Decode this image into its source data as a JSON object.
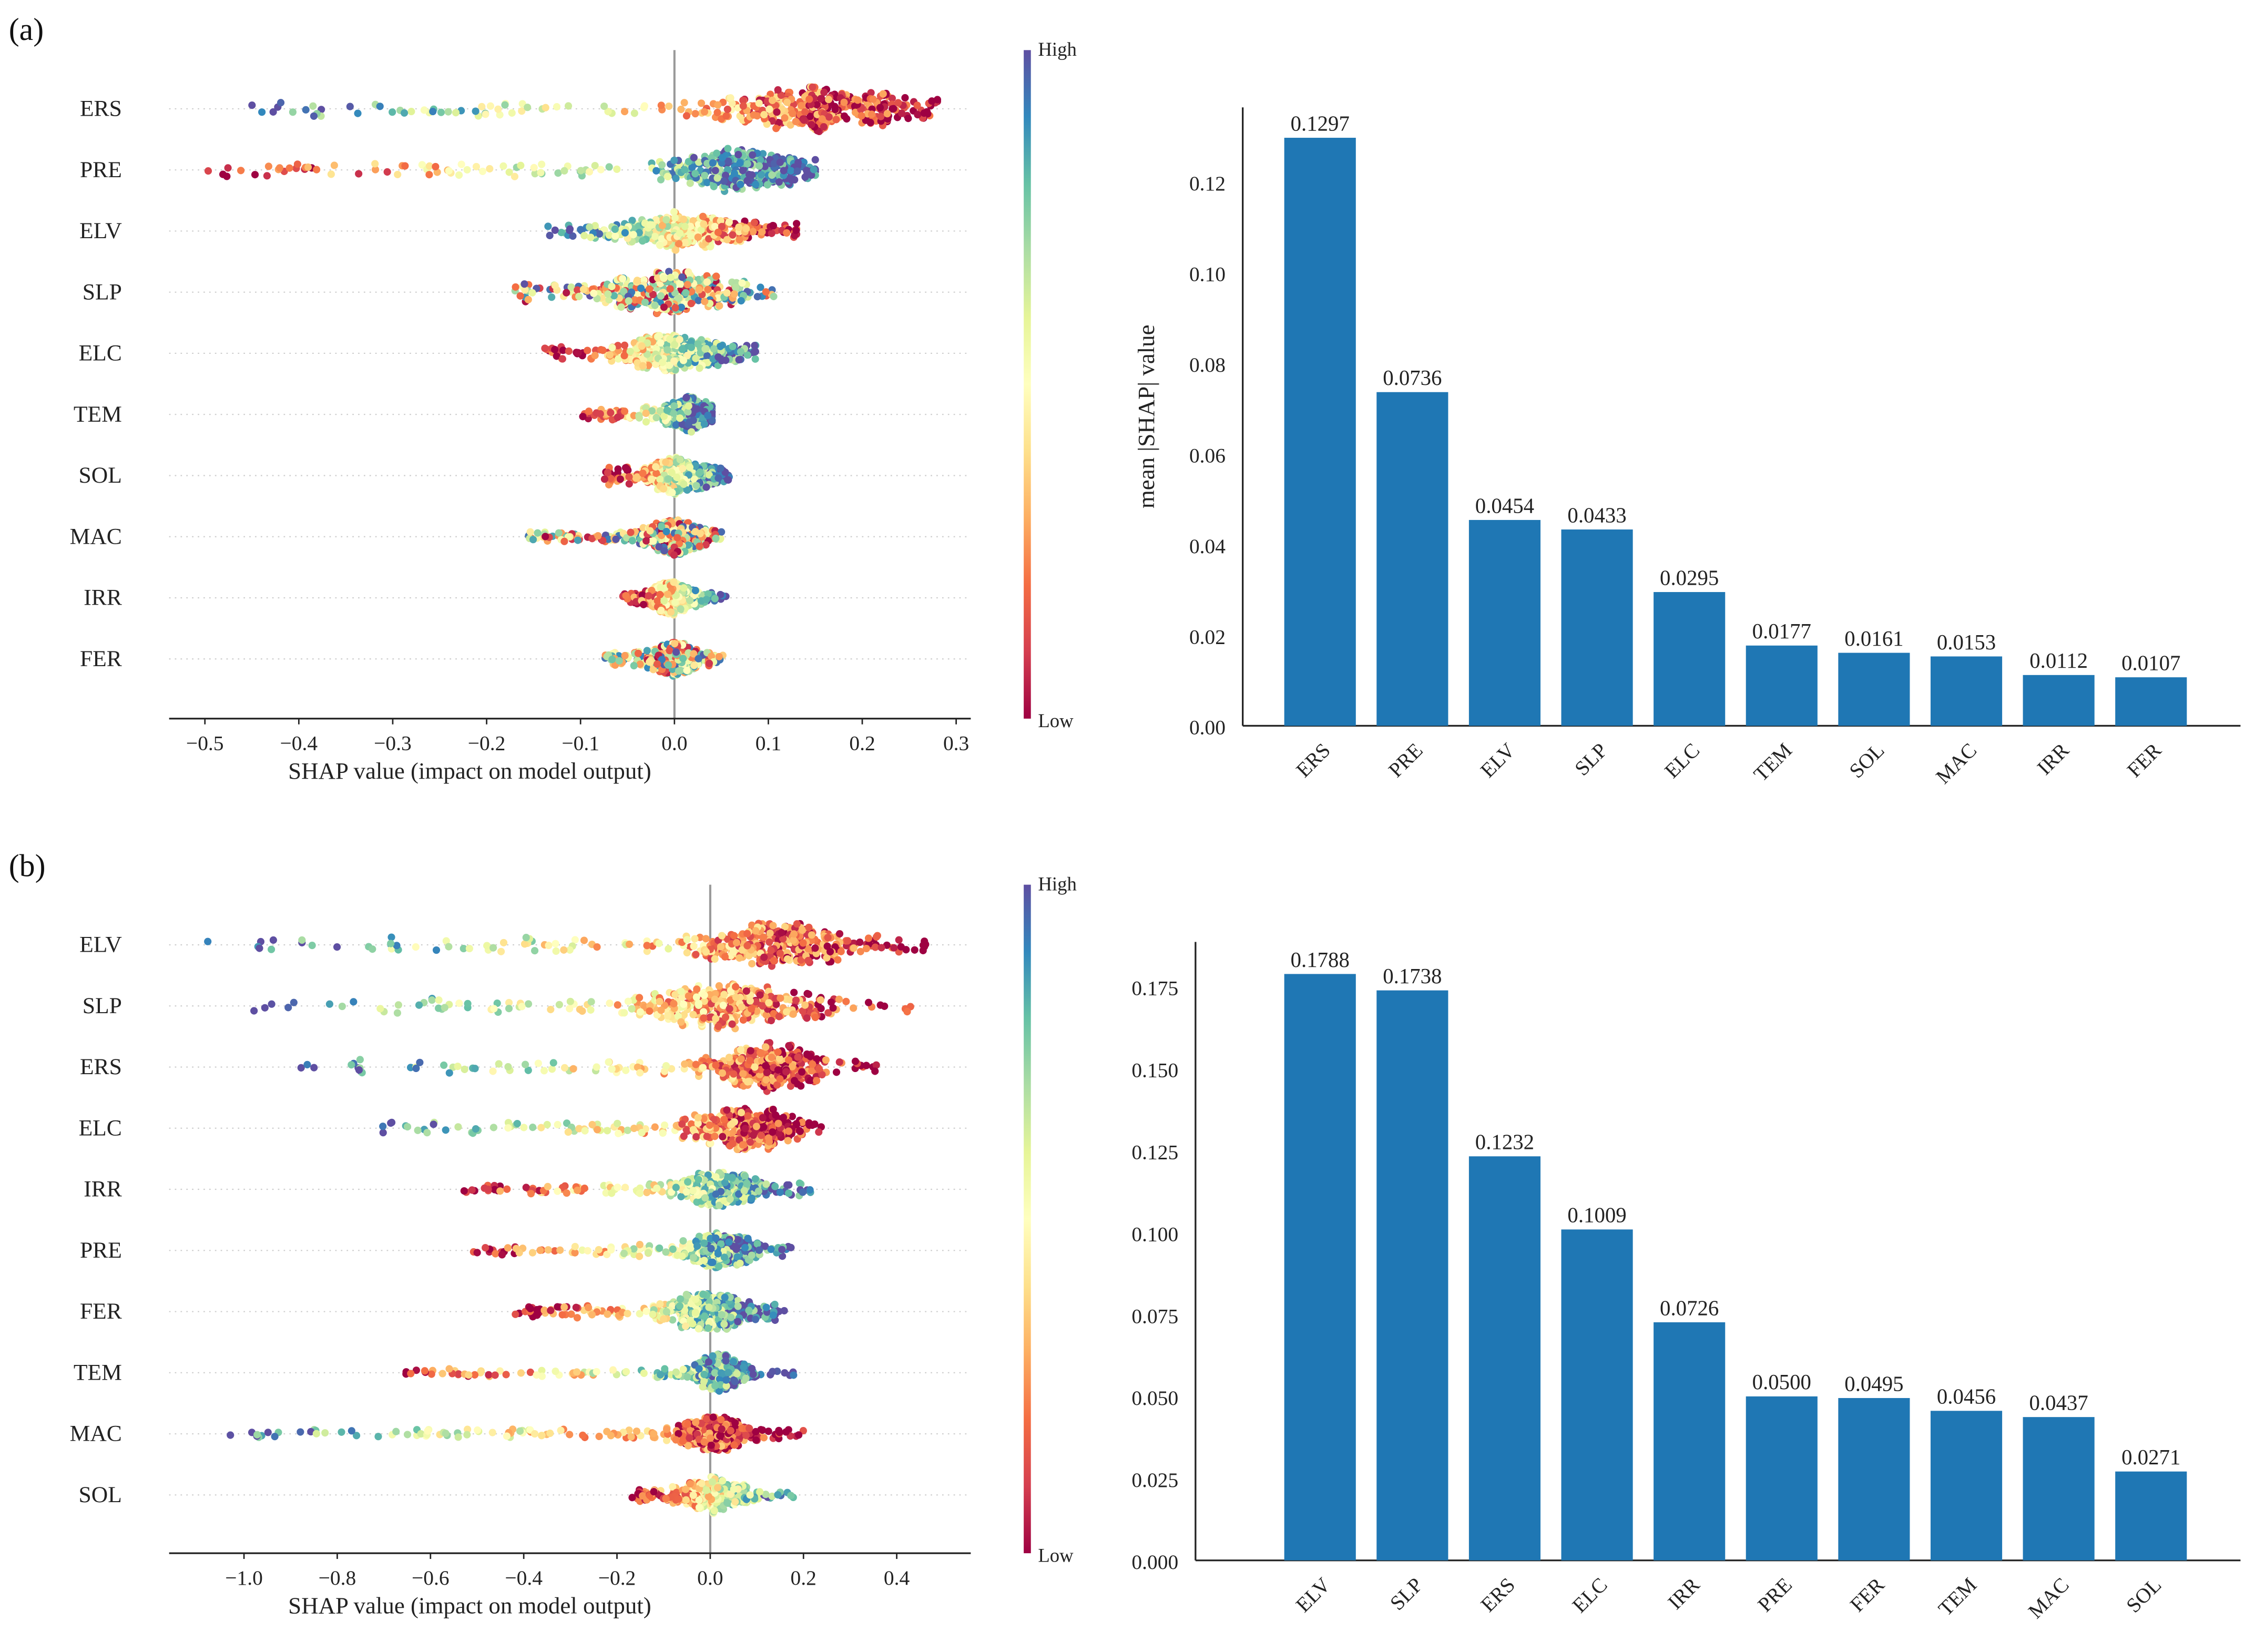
{
  "panels": [
    {
      "label": "(a)"
    },
    {
      "label": "(b)"
    }
  ],
  "colorbar": {
    "high": "High",
    "low": "Low",
    "colors": [
      "#9e0142",
      "#d53e4f",
      "#f46d43",
      "#fdae61",
      "#fee08b",
      "#ffffbf",
      "#e6f598",
      "#abdda4",
      "#66c2a5",
      "#3288bd",
      "#5e4fa2"
    ]
  },
  "bar_color": "#1f77b4",
  "chart_data": [
    {
      "type": "scatter",
      "subtype": "shap-beeswarm",
      "panel": "(a)",
      "xlabel": "SHAP value (impact on model output)",
      "xlim": [
        -0.54,
        0.32
      ],
      "xticks": [
        -0.5,
        -0.4,
        -0.3,
        -0.2,
        -0.1,
        0.0,
        0.1,
        0.2,
        0.3
      ],
      "xtick_labels": [
        "−0.5",
        "−0.4",
        "−0.3",
        "−0.2",
        "−0.1",
        "0.0",
        "0.1",
        "0.2",
        "0.3"
      ],
      "features": [
        {
          "name": "ERS",
          "min": -0.46,
          "max": 0.28,
          "mode": 0.15,
          "spread": 0.06,
          "hw": 17,
          "high": "neg"
        },
        {
          "name": "PRE",
          "min": -0.5,
          "max": 0.15,
          "mode": 0.07,
          "spread": 0.04,
          "hw": 16,
          "high": "pos"
        },
        {
          "name": "ELV",
          "min": -0.14,
          "max": 0.13,
          "mode": 0.02,
          "spread": 0.045,
          "hw": 14,
          "high": "neg"
        },
        {
          "name": "SLP",
          "min": -0.17,
          "max": 0.11,
          "mode": 0.0,
          "spread": 0.04,
          "hw": 15,
          "high": "mix"
        },
        {
          "name": "ELC",
          "min": -0.14,
          "max": 0.095,
          "mode": 0.0,
          "spread": 0.035,
          "hw": 13,
          "high": "pos"
        },
        {
          "name": "TEM",
          "min": -0.1,
          "max": 0.04,
          "mode": 0.015,
          "spread": 0.015,
          "hw": 13,
          "high": "pos"
        },
        {
          "name": "SOL",
          "min": -0.075,
          "max": 0.06,
          "mode": 0.005,
          "spread": 0.02,
          "hw": 13,
          "high": "pos"
        },
        {
          "name": "MAC",
          "min": -0.16,
          "max": 0.05,
          "mode": 0.0,
          "spread": 0.02,
          "hw": 13,
          "high": "mix"
        },
        {
          "name": "IRR",
          "min": -0.055,
          "max": 0.055,
          "mode": 0.0,
          "spread": 0.015,
          "hw": 12,
          "high": "pos"
        },
        {
          "name": "FER",
          "min": -0.075,
          "max": 0.055,
          "mode": 0.0,
          "spread": 0.015,
          "hw": 12,
          "high": "mix"
        }
      ]
    },
    {
      "type": "bar",
      "panel": "(a)",
      "ylabel": "mean |SHAP| value",
      "ylim": [
        0,
        0.1353
      ],
      "yticks": [
        0.0,
        0.02,
        0.04,
        0.06,
        0.08,
        0.1,
        0.12
      ],
      "ytick_labels": [
        "0.00",
        "0.02",
        "0.04",
        "0.06",
        "0.08",
        "0.10",
        "0.12"
      ],
      "categories": [
        "ERS",
        "PRE",
        "ELV",
        "SLP",
        "ELC",
        "TEM",
        "SOL",
        "MAC",
        "IRR",
        "FER"
      ],
      "values": [
        0.1297,
        0.0736,
        0.0454,
        0.0433,
        0.0295,
        0.0177,
        0.0161,
        0.0153,
        0.0112,
        0.0107
      ],
      "value_labels": [
        "0.1297",
        "0.0736",
        "0.0454",
        "0.0433",
        "0.0295",
        "0.0177",
        "0.0161",
        "0.0153",
        "0.0112",
        "0.0107"
      ]
    },
    {
      "type": "scatter",
      "subtype": "shap-beeswarm",
      "panel": "(b)",
      "xlabel": "SHAP value (impact on model output)",
      "xlim": [
        -1.16,
        0.56
      ],
      "xticks": [
        -1.0,
        -0.8,
        -0.6,
        -0.4,
        -0.2,
        0.0,
        0.2,
        0.4
      ],
      "xtick_labels": [
        "−1.0",
        "−0.8",
        "−0.6",
        "−0.4",
        "−0.2",
        "0.0",
        "0.2",
        "0.4"
      ],
      "features": [
        {
          "name": "ELV",
          "min": -1.08,
          "max": 0.48,
          "mode": 0.15,
          "spread": 0.09,
          "hw": 16,
          "high": "neg"
        },
        {
          "name": "SLP",
          "min": -1.0,
          "max": 0.43,
          "mode": 0.05,
          "spread": 0.1,
          "hw": 16,
          "high": "neg"
        },
        {
          "name": "ERS",
          "min": -0.88,
          "max": 0.36,
          "mode": 0.13,
          "spread": 0.06,
          "hw": 17,
          "high": "neg"
        },
        {
          "name": "ELC",
          "min": -0.72,
          "max": 0.25,
          "mode": 0.08,
          "spread": 0.06,
          "hw": 15,
          "high": "neg"
        },
        {
          "name": "IRR",
          "min": -0.53,
          "max": 0.22,
          "mode": 0.02,
          "spread": 0.05,
          "hw": 13,
          "high": "pos"
        },
        {
          "name": "PRE",
          "min": -0.52,
          "max": 0.18,
          "mode": 0.02,
          "spread": 0.04,
          "hw": 13,
          "high": "pos"
        },
        {
          "name": "FER",
          "min": -0.43,
          "max": 0.16,
          "mode": 0.0,
          "spread": 0.05,
          "hw": 13,
          "high": "pos"
        },
        {
          "name": "TEM",
          "min": -0.69,
          "max": 0.18,
          "mode": 0.02,
          "spread": 0.03,
          "hw": 13,
          "high": "pos"
        },
        {
          "name": "MAC",
          "min": -1.04,
          "max": 0.2,
          "mode": 0.01,
          "spread": 0.04,
          "hw": 12,
          "high": "neg"
        },
        {
          "name": "SOL",
          "min": -0.17,
          "max": 0.18,
          "mode": 0.01,
          "spread": 0.04,
          "hw": 13,
          "high": "pos"
        }
      ]
    },
    {
      "type": "bar",
      "panel": "(b)",
      "ylabel": "",
      "ylim": [
        0,
        0.1873
      ],
      "yticks": [
        0.0,
        0.025,
        0.05,
        0.075,
        0.1,
        0.125,
        0.15,
        0.175
      ],
      "ytick_labels": [
        "0.000",
        "0.025",
        "0.050",
        "0.075",
        "0.100",
        "0.125",
        "0.150",
        "0.175"
      ],
      "categories": [
        "ELV",
        "SLP",
        "ERS",
        "ELC",
        "IRR",
        "PRE",
        "FER",
        "TEM",
        "MAC",
        "SOL"
      ],
      "values": [
        0.1788,
        0.1738,
        0.1232,
        0.1009,
        0.0726,
        0.05,
        0.0495,
        0.0456,
        0.0437,
        0.0271
      ],
      "value_labels": [
        "0.1788",
        "0.1738",
        "0.1232",
        "0.1009",
        "0.0726",
        "0.0500",
        "0.0495",
        "0.0456",
        "0.0437",
        "0.0271"
      ]
    }
  ]
}
